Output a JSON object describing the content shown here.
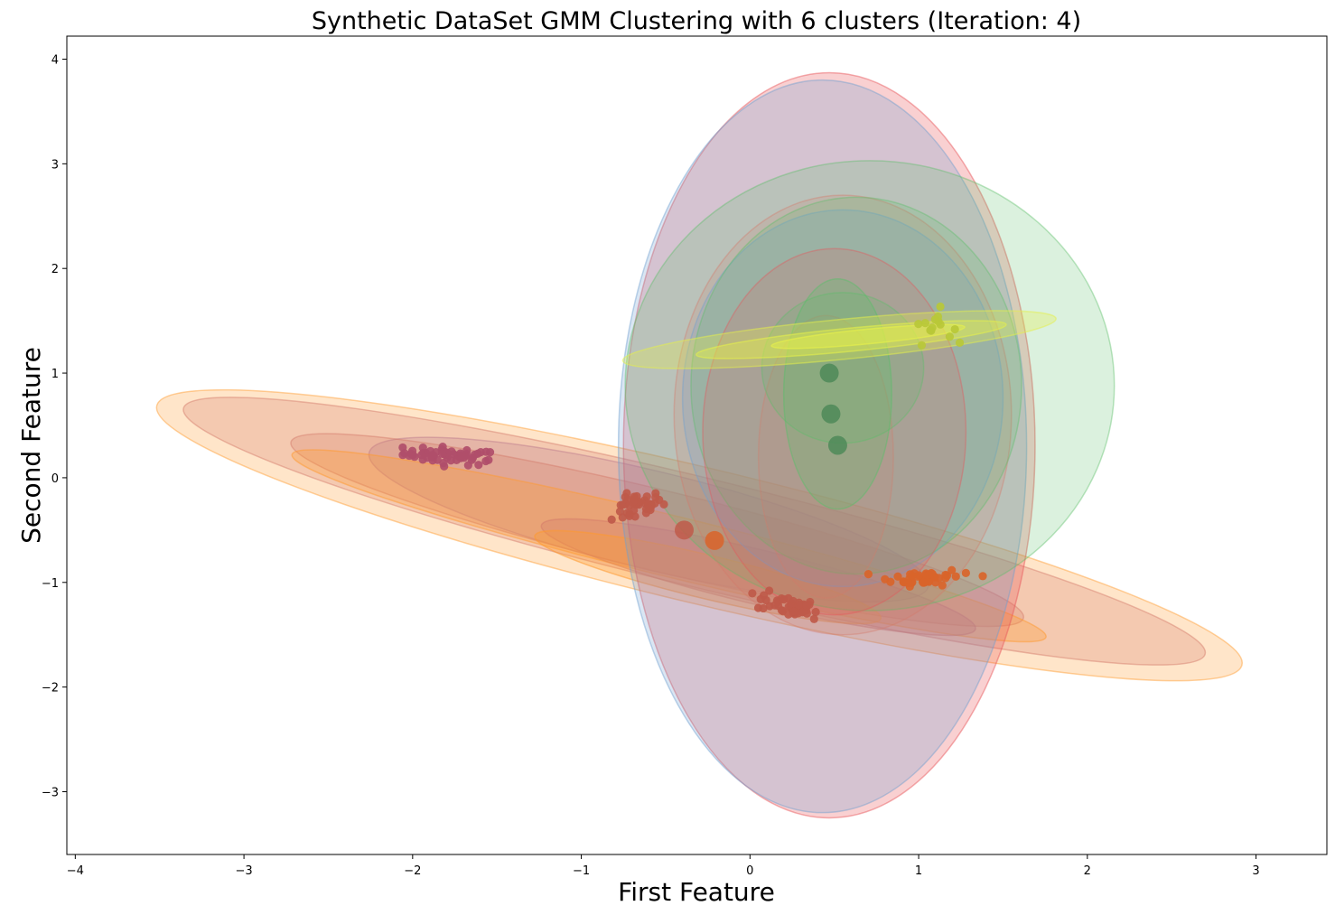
{
  "chart_data": {
    "type": "scatter",
    "title": "Synthetic DataSet GMM Clustering with 6 clusters (Iteration: 4)",
    "xlabel": "First Feature",
    "ylabel": "Second Feature",
    "xlim": [
      -4.05,
      3.42
    ],
    "ylim": [
      -3.6,
      4.22
    ],
    "xticks": [
      -4,
      -3,
      -2,
      -1,
      0,
      1,
      2,
      3
    ],
    "yticks": [
      -3,
      -2,
      -1,
      0,
      1,
      2,
      3,
      4
    ],
    "xtick_labels": [
      "−4",
      "−3",
      "−2",
      "−1",
      "0",
      "1",
      "2",
      "3"
    ],
    "ytick_labels": [
      "−3",
      "−2",
      "−1",
      "0",
      "1",
      "2",
      "3",
      "4"
    ],
    "grid": false,
    "legend": "none",
    "colors": {
      "purple": "#9467bd",
      "orange": "#ff9a2e",
      "salmon": "#d47a6a",
      "red": "#e8555a",
      "blue": "#6f9fd0",
      "green": "#5cbf6a",
      "yellow": "#e6f04a",
      "points_left": "#b04e6a",
      "points_mid": "#bf5a4a",
      "points_right": "#d9642a",
      "points_top": "#b8c838",
      "means": "#4d8a58"
    },
    "clusters": [
      {
        "color": "purple",
        "center": [
          -0.6,
          -0.4
        ],
        "radii": [
          1.78,
          0.45
        ],
        "angle_deg": -22,
        "alpha": 0.24
      },
      {
        "color": "orange",
        "center": [
          -0.3,
          -0.55
        ],
        "radii": [
          3.45,
          0.62
        ],
        "angle_deg": -21.5,
        "alpha": 0.26
      },
      {
        "color": "salmon",
        "center": [
          -0.33,
          -0.51
        ],
        "radii": [
          3.25,
          0.5
        ],
        "angle_deg": -21.5,
        "alpha": 0.26
      },
      {
        "color": "salmon",
        "center": [
          -0.55,
          -0.5
        ],
        "radii": [
          2.33,
          0.37
        ],
        "angle_deg": -21.5,
        "alpha": 0.26
      },
      {
        "color": "orange",
        "center": [
          -0.48,
          -0.65
        ],
        "radii": [
          2.4,
          0.28
        ],
        "angle_deg": -21.5,
        "alpha": 0.3
      },
      {
        "color": "salmon",
        "center": [
          0.05,
          -0.95
        ],
        "radii": [
          1.38,
          0.25
        ],
        "angle_deg": -21.5,
        "alpha": 0.3
      },
      {
        "color": "orange",
        "center": [
          -0.25,
          -0.95
        ],
        "radii": [
          1.1,
          0.2
        ],
        "angle_deg": -21.5,
        "alpha": 0.34
      },
      {
        "color": "red",
        "center": [
          0.47,
          0.31
        ],
        "radii": [
          1.22,
          3.56
        ],
        "angle_deg": 0,
        "alpha": 0.28
      },
      {
        "color": "blue",
        "center": [
          0.43,
          0.3
        ],
        "radii": [
          1.21,
          3.5
        ],
        "angle_deg": 0,
        "alpha": 0.26
      },
      {
        "color": "green",
        "center": [
          0.71,
          0.88
        ],
        "radii": [
          1.45,
          2.15
        ],
        "angle_deg": 0,
        "alpha": 0.22
      },
      {
        "color": "salmon",
        "center": [
          0.55,
          0.6
        ],
        "radii": [
          1.0,
          2.1
        ],
        "angle_deg": 0,
        "alpha": 0.18
      },
      {
        "color": "blue",
        "center": [
          0.55,
          0.76
        ],
        "radii": [
          0.95,
          1.8
        ],
        "angle_deg": 0,
        "alpha": 0.22
      },
      {
        "color": "green",
        "center": [
          0.63,
          0.88
        ],
        "radii": [
          0.98,
          1.8
        ],
        "angle_deg": 0,
        "alpha": 0.2
      },
      {
        "color": "red",
        "center": [
          0.5,
          0.44
        ],
        "radii": [
          0.78,
          1.75
        ],
        "angle_deg": 0,
        "alpha": 0.18
      },
      {
        "color": "salmon",
        "center": [
          0.45,
          0.2
        ],
        "radii": [
          0.4,
          1.35
        ],
        "angle_deg": 0,
        "alpha": 0.14
      },
      {
        "color": "green",
        "center": [
          0.52,
          0.8
        ],
        "radii": [
          0.32,
          1.1
        ],
        "angle_deg": 0,
        "alpha": 0.28
      },
      {
        "color": "green",
        "center": [
          0.55,
          1.05
        ],
        "radii": [
          0.48,
          0.72
        ],
        "angle_deg": 0,
        "alpha": 0.2
      },
      {
        "color": "yellow",
        "center": [
          0.53,
          1.32
        ],
        "radii": [
          1.3,
          0.19
        ],
        "angle_deg": 9,
        "alpha": 0.3
      },
      {
        "color": "yellow",
        "center": [
          0.6,
          1.32
        ],
        "radii": [
          0.93,
          0.11
        ],
        "angle_deg": 9,
        "alpha": 0.36
      },
      {
        "color": "yellow",
        "center": [
          0.7,
          1.35
        ],
        "radii": [
          0.58,
          0.07
        ],
        "angle_deg": 9,
        "alpha": 0.42
      }
    ],
    "point_clusters": [
      {
        "color": "points_left",
        "center": [
          -1.77,
          0.21
        ],
        "spread": [
          0.14,
          0.04
        ],
        "count": 55,
        "tilt": -0.1,
        "extra": [
          [
            -2.02,
            0.21
          ],
          [
            -1.55,
            0.17
          ]
        ]
      },
      {
        "color": "points_mid",
        "center": [
          -0.68,
          -0.28
        ],
        "spread": [
          0.08,
          0.06
        ],
        "count": 40,
        "tilt": 0.35,
        "extra": [
          [
            -0.82,
            -0.4
          ]
        ]
      },
      {
        "color": "points_mid",
        "center": [
          0.22,
          -1.22
        ],
        "spread": [
          0.09,
          0.05
        ],
        "count": 45,
        "tilt": -0.3,
        "extra": [
          [
            0.38,
            -1.35
          ]
        ]
      },
      {
        "color": "points_right",
        "center": [
          1.05,
          -0.95
        ],
        "spread": [
          0.1,
          0.04
        ],
        "count": 45,
        "tilt": 0.05,
        "extra": [
          [
            0.8,
            -0.97
          ],
          [
            1.38,
            -0.94
          ],
          [
            1.28,
            -0.91
          ]
        ]
      },
      {
        "color": "points_top",
        "center": [
          1.08,
          1.45
        ],
        "spread": [
          0.06,
          0.08
        ],
        "count": 14,
        "tilt": 0,
        "extra": []
      }
    ],
    "means": [
      {
        "x": 0.47,
        "y": 1.0,
        "color": "means"
      },
      {
        "x": 0.48,
        "y": 0.61,
        "color": "means"
      },
      {
        "x": 0.52,
        "y": 0.31,
        "color": "means"
      },
      {
        "x": -0.39,
        "y": -0.5,
        "color": "points_mid"
      },
      {
        "x": -0.21,
        "y": -0.6,
        "color": "points_right"
      }
    ]
  }
}
